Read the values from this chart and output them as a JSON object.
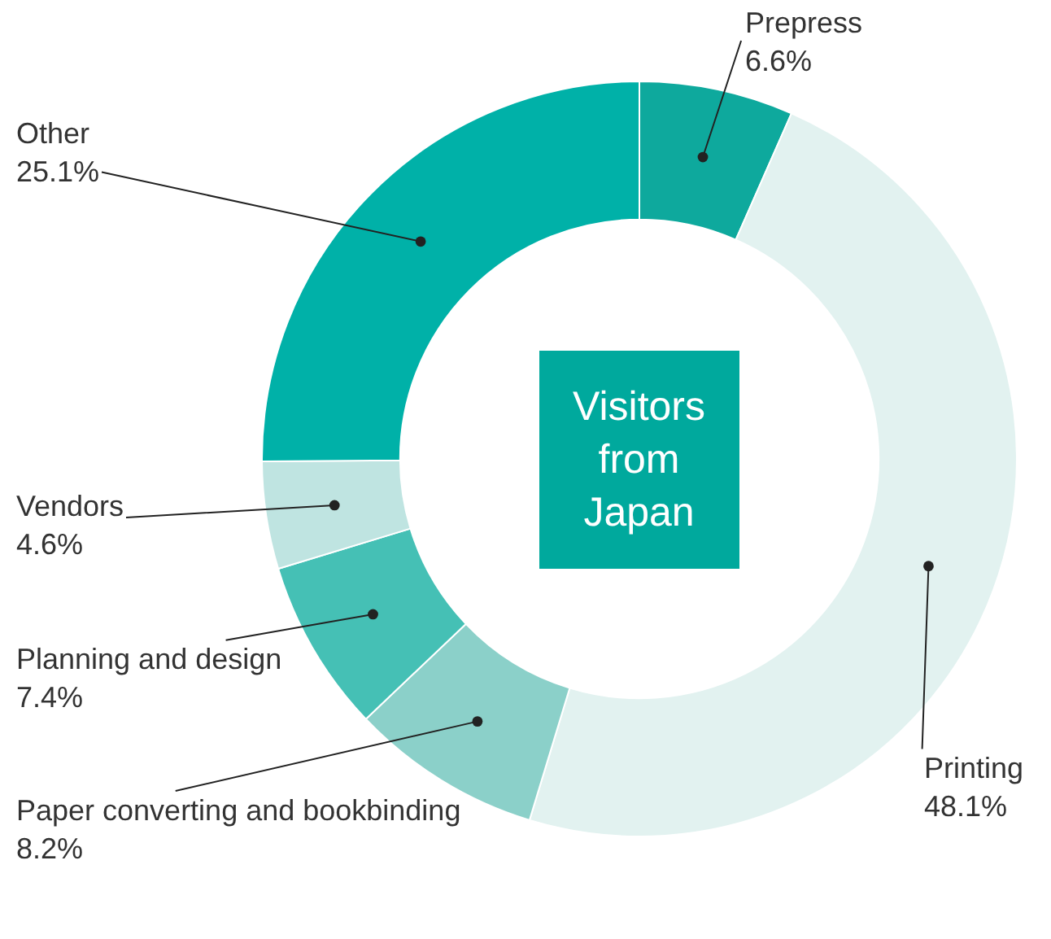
{
  "chart_data": {
    "type": "donut",
    "categories": [
      "Prepress",
      "Printing",
      "Paper converting and bookbinding",
      "Planning and design",
      "Vendors",
      "Other"
    ],
    "values": [
      6.6,
      48.1,
      8.2,
      7.4,
      4.6,
      25.1
    ],
    "value_labels": [
      "6.6%",
      "48.1%",
      "8.2%",
      "7.4%",
      "4.6%",
      "25.1%"
    ],
    "colors": [
      "#0ea99d",
      "#e2f2f0",
      "#8bd0c9",
      "#45c0b5",
      "#bfe4e1",
      "#00b1a8"
    ],
    "annotations": [
      "Visitors\nfrom\nJapan"
    ]
  }
}
